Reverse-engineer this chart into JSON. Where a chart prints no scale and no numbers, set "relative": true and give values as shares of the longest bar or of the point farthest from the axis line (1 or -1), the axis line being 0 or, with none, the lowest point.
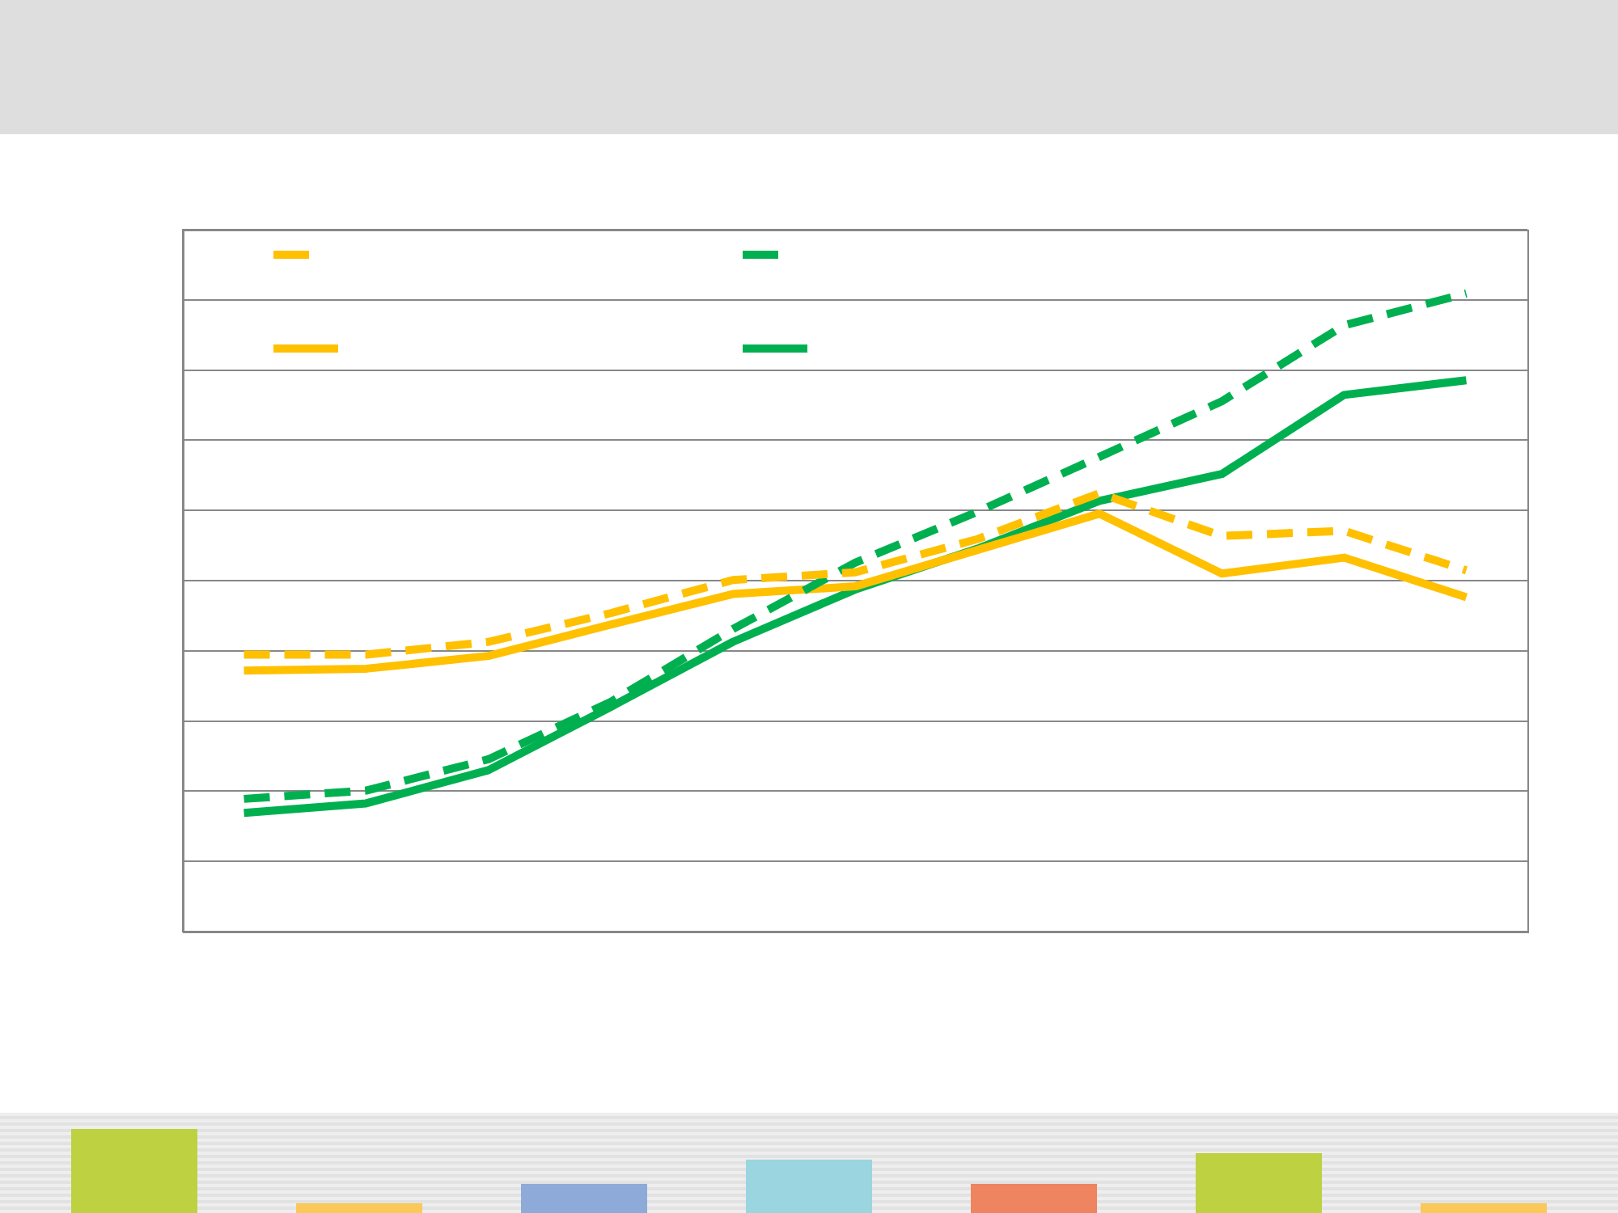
{
  "chart_data": {
    "type": "line",
    "relative": true,
    "categories": [
      null,
      null,
      null,
      null,
      null,
      null,
      null,
      null,
      null,
      null,
      null
    ],
    "grid": "y",
    "marker": "none",
    "series": [
      {
        "color": "#ffc000",
        "line_style": "dashed",
        "values": [
          0.434,
          0.434,
          0.454,
          0.499,
          0.551,
          0.563,
          0.615,
          0.687,
          0.62,
          0.628,
          0.566
        ]
      },
      {
        "color": "#00b050",
        "line_style": "dashed",
        "values": [
          0.208,
          0.221,
          0.27,
          0.36,
          0.474,
          0.578,
          0.658,
          0.744,
          0.831,
          0.95,
          1
        ]
      },
      {
        "color": "#ffc000",
        "line_style": "solid",
        "values": [
          0.409,
          0.412,
          0.432,
          0.481,
          0.529,
          0.541,
          0.598,
          0.655,
          0.561,
          0.586,
          0.524
        ]
      },
      {
        "color": "#00b050",
        "line_style": "solid",
        "values": [
          0.186,
          0.201,
          0.253,
          0.352,
          0.454,
          0.536,
          0.6,
          0.675,
          0.717,
          0.841,
          0.864
        ]
      }
    ]
  }
}
